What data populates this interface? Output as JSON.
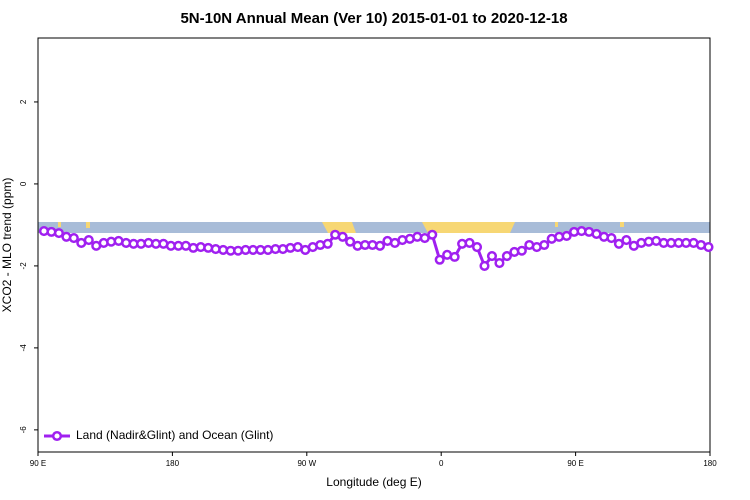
{
  "chart_data": {
    "type": "line",
    "title": "5N-10N Annual Mean (Ver 10)   2015-01-01 to 2020-12-18",
    "x_label": "Longitude (deg E)",
    "y_label": "XCO2 - MLO trend (ppm)",
    "xlim": [
      90,
      540
    ],
    "ylim": [
      -6.54,
      3.56
    ],
    "xticks": [
      {
        "value": 90,
        "label": "90 E"
      },
      180,
      {
        "value": 270,
        "label": "90 W"
      },
      {
        "value": 360,
        "label": "0"
      },
      {
        "value": 450,
        "label": "90 E"
      },
      {
        "value": 540,
        "label": "180"
      }
    ],
    "yticks": [
      -6,
      -4,
      -2,
      0,
      2
    ],
    "legend": "bottom-left",
    "x": [
      94,
      99,
      104,
      109,
      114,
      119,
      124,
      129,
      134,
      139,
      144,
      149,
      154,
      159,
      164,
      169,
      174,
      179,
      184,
      189,
      194,
      199,
      204,
      209,
      214,
      219,
      224,
      229,
      234,
      239,
      244,
      249,
      254,
      259,
      264,
      269,
      274,
      279,
      284,
      289,
      294,
      299,
      304,
      309,
      314,
      319,
      324,
      329,
      334,
      339,
      344,
      349,
      354,
      359,
      364,
      369,
      374,
      379,
      384,
      389,
      394,
      399,
      404,
      409,
      414,
      419,
      424,
      429,
      434,
      439,
      444,
      449,
      454,
      459,
      464,
      469,
      474,
      479,
      484,
      489,
      494,
      499,
      504,
      509,
      514,
      519,
      524,
      529,
      534,
      539
    ],
    "series": [
      {
        "name": "Land (Nadir&Glint) and Ocean (Glint)",
        "color": "#a020f0",
        "values": [
          -1.15,
          -1.17,
          -1.2,
          -1.29,
          -1.32,
          -1.44,
          -1.37,
          -1.51,
          -1.44,
          -1.41,
          -1.39,
          -1.44,
          -1.46,
          -1.46,
          -1.44,
          -1.46,
          -1.46,
          -1.51,
          -1.51,
          -1.51,
          -1.56,
          -1.54,
          -1.56,
          -1.59,
          -1.61,
          -1.63,
          -1.63,
          -1.61,
          -1.61,
          -1.61,
          -1.61,
          -1.59,
          -1.59,
          -1.56,
          -1.54,
          -1.61,
          -1.54,
          -1.49,
          -1.46,
          -1.24,
          -1.29,
          -1.41,
          -1.51,
          -1.49,
          -1.49,
          -1.51,
          -1.39,
          -1.44,
          -1.37,
          -1.34,
          -1.29,
          -1.32,
          -1.24,
          -1.85,
          -1.73,
          -1.78,
          -1.46,
          -1.44,
          -1.54,
          -2.0,
          -1.76,
          -1.93,
          -1.76,
          -1.66,
          -1.63,
          -1.49,
          -1.54,
          -1.49,
          -1.34,
          -1.29,
          -1.27,
          -1.17,
          -1.15,
          -1.17,
          -1.22,
          -1.29,
          -1.32,
          -1.46,
          -1.37,
          -1.51,
          -1.44,
          -1.41,
          -1.39,
          -1.44,
          -1.44,
          -1.44,
          -1.44,
          -1.44,
          -1.49,
          -1.54
        ]
      }
    ]
  }
}
